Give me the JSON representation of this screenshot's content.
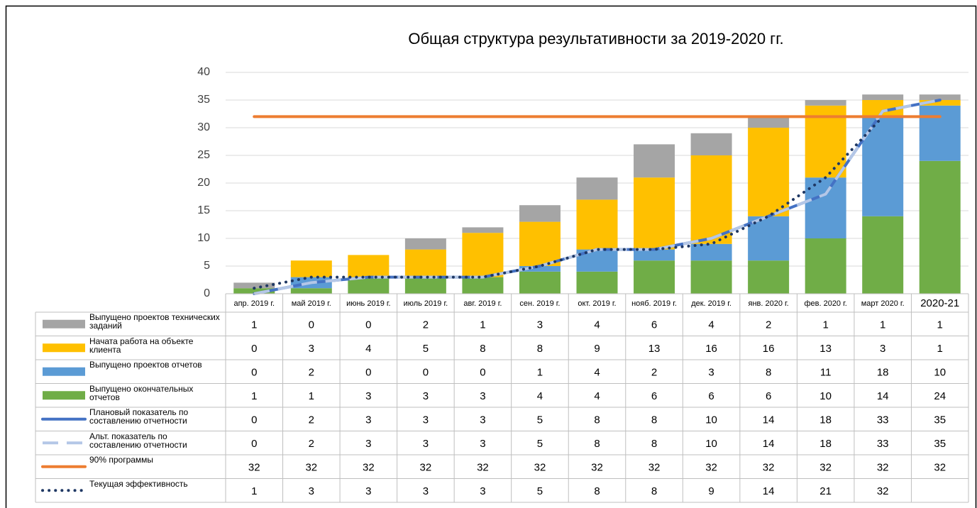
{
  "chart_data": {
    "type": "bar",
    "stacked": true,
    "title": "Общая структура результативности за 2019-2020 гг.",
    "categories": [
      "апр. 2019 г.",
      "май 2019 г.",
      "июнь 2019 г.",
      "июль 2019 г.",
      "авг. 2019 г.",
      "сен. 2019 г.",
      "окт. 2019 г.",
      "нояб. 2019 г.",
      "дек. 2019 г.",
      "янв. 2020 г.",
      "фев. 2020 г.",
      "март 2020 г.",
      "2020-21"
    ],
    "ylim": [
      0,
      40
    ],
    "yticks": [
      0,
      5,
      10,
      15,
      20,
      25,
      30,
      35,
      40
    ],
    "grid": true,
    "series": [
      {
        "name": "Выпущено проектов технических заданий",
        "type": "bar",
        "color": "#a5a5a5",
        "values": [
          1,
          0,
          0,
          2,
          1,
          3,
          4,
          6,
          4,
          2,
          1,
          1,
          1
        ]
      },
      {
        "name": "Начата работа на объекте клиента",
        "type": "bar",
        "color": "#ffc000",
        "values": [
          0,
          3,
          4,
          5,
          8,
          8,
          9,
          13,
          16,
          16,
          13,
          3,
          1
        ]
      },
      {
        "name": "Выпущено проектов отчетов",
        "type": "bar",
        "color": "#5b9bd5",
        "values": [
          0,
          2,
          0,
          0,
          0,
          1,
          4,
          2,
          3,
          8,
          11,
          18,
          10
        ]
      },
      {
        "name": "Выпущено окончательных отчетов",
        "type": "bar",
        "color": "#70ad47",
        "values": [
          1,
          1,
          3,
          3,
          3,
          4,
          4,
          6,
          6,
          6,
          10,
          14,
          24
        ]
      },
      {
        "name": "Плановый показатель по составлению отчетности",
        "type": "line",
        "dash": "solid",
        "color": "#4472c4",
        "values": [
          0,
          2,
          3,
          3,
          3,
          5,
          8,
          8,
          10,
          14,
          18,
          33,
          35
        ]
      },
      {
        "name": "Альт. показатель по составлению отчетности",
        "type": "line",
        "dash": "dashed",
        "color": "#b4c7e7",
        "values": [
          0,
          2,
          3,
          3,
          3,
          5,
          8,
          8,
          10,
          14,
          18,
          33,
          35
        ]
      },
      {
        "name": "90% программы",
        "type": "line",
        "dash": "solid",
        "color": "#ed7d31",
        "values": [
          32,
          32,
          32,
          32,
          32,
          32,
          32,
          32,
          32,
          32,
          32,
          32,
          32
        ]
      },
      {
        "name": "Текущая эффективность",
        "type": "line",
        "dash": "dotted",
        "color": "#1f3864",
        "values": [
          1,
          3,
          3,
          3,
          3,
          5,
          8,
          8,
          9,
          14,
          21,
          32,
          null
        ]
      }
    ]
  }
}
